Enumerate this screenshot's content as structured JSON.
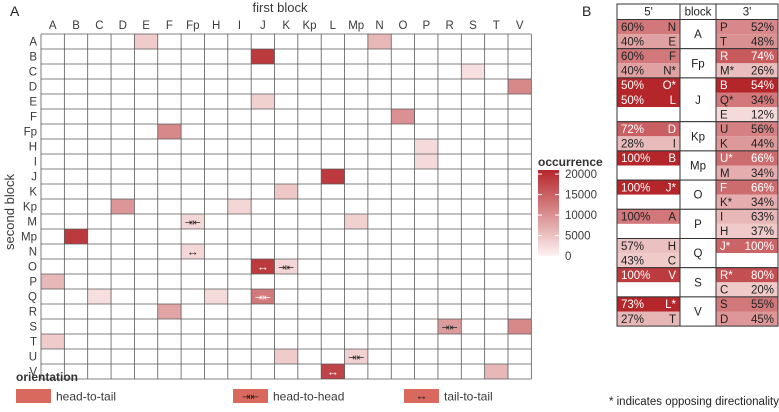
{
  "colors": {
    "scale_low": "#fdf3f1",
    "scale_high": "#b5262b",
    "grid": "#5a5a5a",
    "text": "#3a3a3a",
    "head_to_tail": "#d9695f"
  },
  "chart_data": [
    {
      "panel": "A",
      "type": "heatmap",
      "title": "first block",
      "ylabel": "second block",
      "x_categories": [
        "A",
        "B",
        "C",
        "D",
        "E",
        "F",
        "Fp",
        "H",
        "I",
        "J",
        "K",
        "Kp",
        "L",
        "Mp",
        "N",
        "O",
        "P",
        "R",
        "S",
        "T",
        "V"
      ],
      "y_categories": [
        "A",
        "B",
        "C",
        "D",
        "E",
        "F",
        "Fp",
        "H",
        "I",
        "J",
        "K",
        "Kp",
        "M",
        "Mp",
        "N",
        "O",
        "P",
        "Q",
        "R",
        "S",
        "T",
        "U",
        "V"
      ],
      "legend": {
        "title": "occurrence",
        "ticks": [
          20000,
          15000,
          10000,
          5000,
          0
        ],
        "tick_labels": [
          "20000",
          "15000",
          "10000",
          "5000",
          "0"
        ],
        "range": [
          0,
          21000
        ]
      },
      "orientation_legend": {
        "title": "orientation",
        "items": [
          {
            "key": "head_to_tail",
            "label": "head-to-tail",
            "symbol": ""
          },
          {
            "key": "head_to_head",
            "label": "head-to-head",
            "symbol": "⇥⇤"
          },
          {
            "key": "tail_to_tail",
            "label": "tail-to-tail",
            "symbol": "↔"
          }
        ]
      },
      "cells": [
        {
          "x": "E",
          "y": "A",
          "value": 4000,
          "orientation": "head_to_tail"
        },
        {
          "x": "N",
          "y": "A",
          "value": 6000,
          "orientation": "head_to_tail"
        },
        {
          "x": "J",
          "y": "B",
          "value": 19000,
          "orientation": "head_to_tail"
        },
        {
          "x": "S",
          "y": "C",
          "value": 2000,
          "orientation": "head_to_tail"
        },
        {
          "x": "V",
          "y": "D",
          "value": 11000,
          "orientation": "head_to_tail"
        },
        {
          "x": "J",
          "y": "E",
          "value": 3500,
          "orientation": "head_to_tail"
        },
        {
          "x": "O",
          "y": "F",
          "value": 10000,
          "orientation": "head_to_tail"
        },
        {
          "x": "F",
          "y": "Fp",
          "value": 11000,
          "orientation": "head_to_tail"
        },
        {
          "x": "P",
          "y": "H",
          "value": 2500,
          "orientation": "head_to_tail"
        },
        {
          "x": "P",
          "y": "I",
          "value": 2500,
          "orientation": "head_to_tail"
        },
        {
          "x": "L",
          "y": "J",
          "value": 19000,
          "orientation": "head_to_tail"
        },
        {
          "x": "K",
          "y": "K",
          "value": 4500,
          "orientation": "head_to_tail"
        },
        {
          "x": "D",
          "y": "Kp",
          "value": 9500,
          "orientation": "head_to_tail"
        },
        {
          "x": "I",
          "y": "Kp",
          "value": 3000,
          "orientation": "head_to_tail"
        },
        {
          "x": "Fp",
          "y": "M",
          "value": 2800,
          "orientation": "head_to_head"
        },
        {
          "x": "Mp",
          "y": "M",
          "value": 3500,
          "orientation": "head_to_tail"
        },
        {
          "x": "B",
          "y": "Mp",
          "value": 19000,
          "orientation": "head_to_tail"
        },
        {
          "x": "Fp",
          "y": "N",
          "value": 2800,
          "orientation": "tail_to_tail"
        },
        {
          "x": "J",
          "y": "O",
          "value": 19000,
          "orientation": "tail_to_tail"
        },
        {
          "x": "K",
          "y": "O",
          "value": 3000,
          "orientation": "head_to_head"
        },
        {
          "x": "A",
          "y": "P",
          "value": 6000,
          "orientation": "head_to_tail"
        },
        {
          "x": "C",
          "y": "Q",
          "value": 2000,
          "orientation": "head_to_tail"
        },
        {
          "x": "H",
          "y": "Q",
          "value": 2500,
          "orientation": "head_to_tail"
        },
        {
          "x": "J",
          "y": "Q",
          "value": 12500,
          "orientation": "head_to_head"
        },
        {
          "x": "F",
          "y": "R",
          "value": 8000,
          "orientation": "head_to_tail"
        },
        {
          "x": "R",
          "y": "S",
          "value": 9000,
          "orientation": "head_to_head"
        },
        {
          "x": "V",
          "y": "S",
          "value": 11000,
          "orientation": "head_to_tail"
        },
        {
          "x": "A",
          "y": "T",
          "value": 4000,
          "orientation": "head_to_tail"
        },
        {
          "x": "K",
          "y": "U",
          "value": 4000,
          "orientation": "head_to_tail"
        },
        {
          "x": "Mp",
          "y": "U",
          "value": 3500,
          "orientation": "head_to_head"
        },
        {
          "x": "L",
          "y": "V",
          "value": 18000,
          "orientation": "tail_to_tail"
        },
        {
          "x": "T",
          "y": "V",
          "value": 6000,
          "orientation": "head_to_tail"
        }
      ]
    },
    {
      "panel": "B",
      "type": "table",
      "headers": [
        "5'",
        "block",
        "3'"
      ],
      "groups": [
        {
          "block": "A",
          "five": [
            {
              "pct": "60%",
              "name": "N",
              "v": 60
            },
            {
              "pct": "40%",
              "name": "E",
              "v": 40
            }
          ],
          "three": [
            {
              "pct": "52%",
              "name": "P",
              "v": 52
            },
            {
              "pct": "48%",
              "name": "T",
              "v": 48
            }
          ]
        },
        {
          "block": "Fp",
          "five": [
            {
              "pct": "60%",
              "name": "F",
              "v": 60
            },
            {
              "pct": "40%",
              "name": "N*",
              "v": 40
            }
          ],
          "three": [
            {
              "pct": "74%",
              "name": "R",
              "v": 74
            },
            {
              "pct": "26%",
              "name": "M*",
              "v": 26
            }
          ]
        },
        {
          "block": "J",
          "five": [
            {
              "pct": "50%",
              "name": "O*",
              "v": 100
            },
            {
              "pct": "50%",
              "name": "L",
              "v": 100
            },
            {
              "pct": "",
              "name": "",
              "v": 0
            }
          ],
          "three": [
            {
              "pct": "54%",
              "name": "B",
              "v": 100
            },
            {
              "pct": "34%",
              "name": "Q*",
              "v": 60
            },
            {
              "pct": "12%",
              "name": "E",
              "v": 12
            }
          ]
        },
        {
          "block": "Kp",
          "five": [
            {
              "pct": "72%",
              "name": "D",
              "v": 72
            },
            {
              "pct": "28%",
              "name": "I",
              "v": 28
            }
          ],
          "three": [
            {
              "pct": "56%",
              "name": "U",
              "v": 56
            },
            {
              "pct": "44%",
              "name": "K",
              "v": 44
            }
          ]
        },
        {
          "block": "Mp",
          "five": [
            {
              "pct": "100%",
              "name": "B",
              "v": 100
            },
            {
              "pct": "",
              "name": "",
              "v": 0
            }
          ],
          "three": [
            {
              "pct": "66%",
              "name": "U*",
              "v": 66
            },
            {
              "pct": "34%",
              "name": "M",
              "v": 34
            }
          ]
        },
        {
          "block": "O",
          "five": [
            {
              "pct": "100%",
              "name": "J*",
              "v": 100
            },
            {
              "pct": "",
              "name": "",
              "v": 0
            }
          ],
          "three": [
            {
              "pct": "66%",
              "name": "F",
              "v": 66
            },
            {
              "pct": "34%",
              "name": "K*",
              "v": 34
            }
          ]
        },
        {
          "block": "P",
          "five": [
            {
              "pct": "100%",
              "name": "A",
              "v": 60
            },
            {
              "pct": "",
              "name": "",
              "v": 0
            }
          ],
          "three": [
            {
              "pct": "63%",
              "name": "I",
              "v": 30
            },
            {
              "pct": "37%",
              "name": "H",
              "v": 20
            }
          ]
        },
        {
          "block": "Q",
          "five": [
            {
              "pct": "57%",
              "name": "H",
              "v": 25
            },
            {
              "pct": "43%",
              "name": "C",
              "v": 20
            }
          ],
          "three": [
            {
              "pct": "100%",
              "name": "J*",
              "v": 70
            },
            {
              "pct": "",
              "name": "",
              "v": 0
            }
          ]
        },
        {
          "block": "S",
          "five": [
            {
              "pct": "100%",
              "name": "V",
              "v": 90
            },
            {
              "pct": "",
              "name": "",
              "v": 0
            }
          ],
          "three": [
            {
              "pct": "80%",
              "name": "R*",
              "v": 80
            },
            {
              "pct": "20%",
              "name": "C",
              "v": 20
            }
          ]
        },
        {
          "block": "V",
          "five": [
            {
              "pct": "73%",
              "name": "L*",
              "v": 100
            },
            {
              "pct": "27%",
              "name": "T",
              "v": 30
            }
          ],
          "three": [
            {
              "pct": "55%",
              "name": "S",
              "v": 60
            },
            {
              "pct": "45%",
              "name": "D",
              "v": 45
            }
          ]
        }
      ],
      "footnote": "* indicates opposing directionality"
    }
  ]
}
